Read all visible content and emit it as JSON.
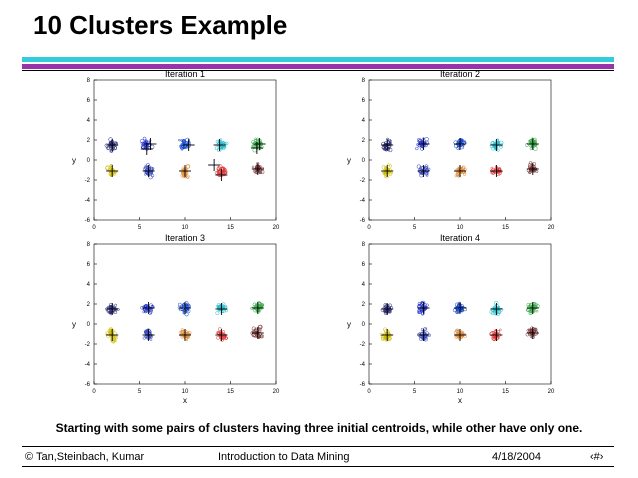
{
  "slide": {
    "title": "10 Clusters Example",
    "caption": "Starting with some pairs of clusters having three initial centroids, while other have only one.",
    "footer": {
      "copyright": "© Tan,Steinbach, Kumar",
      "course": "Introduction to Data Mining",
      "date": "4/18/2004",
      "page": "‹#›"
    },
    "colors": {
      "bar_top": "#33ccdd",
      "bar_bottom": "#9933aa",
      "rule": "#000000"
    }
  },
  "chart_data": [
    {
      "type": "scatter",
      "title": "Iteration 1",
      "xlabel": "",
      "ylabel": "y",
      "xlim": [
        0,
        20
      ],
      "ylim": [
        -6,
        8
      ],
      "xticks": [
        0,
        5,
        10,
        15,
        20
      ],
      "yticks": [
        8,
        6,
        4,
        2,
        0,
        -2,
        -4,
        -6
      ],
      "grid": false,
      "clusters": [
        {
          "color": "#2a2a7a",
          "center": [
            2,
            1.5
          ]
        },
        {
          "color": "#2233cc",
          "center": [
            5.8,
            1.6
          ]
        },
        {
          "color": "#1144cc",
          "center": [
            10,
            1.6
          ]
        },
        {
          "color": "#22bbcc",
          "center": [
            14,
            1.5
          ]
        },
        {
          "color": "#33aa44",
          "center": [
            18,
            1.6
          ]
        },
        {
          "color": "#ccbb00",
          "center": [
            2,
            -1.1
          ]
        },
        {
          "color": "#3344bb",
          "center": [
            6,
            -1.1
          ]
        },
        {
          "color": "#dd8833",
          "center": [
            10,
            -1.1
          ]
        },
        {
          "color": "#dd3333",
          "center": [
            14,
            -1.1
          ]
        },
        {
          "color": "#773333",
          "center": [
            18,
            -0.9
          ]
        }
      ],
      "centroids": [
        [
          2,
          1.5
        ],
        [
          5.8,
          1.1
        ],
        [
          6.2,
          1.6
        ],
        [
          10.4,
          1.5
        ],
        [
          13.8,
          1.5
        ],
        [
          17.9,
          1.2
        ],
        [
          18.2,
          1.6
        ],
        [
          2,
          -1.1
        ],
        [
          6,
          -1.1
        ],
        [
          10,
          -1.1
        ],
        [
          14,
          -1.5
        ],
        [
          13.2,
          -0.5
        ],
        [
          18,
          -0.9
        ]
      ]
    },
    {
      "type": "scatter",
      "title": "Iteration 2",
      "xlabel": "",
      "ylabel": "y",
      "xlim": [
        0,
        20
      ],
      "ylim": [
        -6,
        8
      ],
      "xticks": [
        0,
        5,
        10,
        15,
        20
      ],
      "yticks": [
        8,
        6,
        4,
        2,
        0,
        -2,
        -4,
        -6
      ],
      "grid": false,
      "clusters": [
        {
          "color": "#2a2a7a",
          "center": [
            2,
            1.5
          ]
        },
        {
          "color": "#2233cc",
          "center": [
            5.8,
            1.6
          ]
        },
        {
          "color": "#1144cc",
          "center": [
            10,
            1.6
          ]
        },
        {
          "color": "#22bbcc",
          "center": [
            14,
            1.5
          ]
        },
        {
          "color": "#33aa44",
          "center": [
            18,
            1.6
          ]
        },
        {
          "color": "#ccbb00",
          "center": [
            2,
            -1.1
          ]
        },
        {
          "color": "#3344bb",
          "center": [
            6,
            -1.1
          ]
        },
        {
          "color": "#dd8833",
          "center": [
            10,
            -1.1
          ]
        },
        {
          "color": "#dd3333",
          "center": [
            14,
            -1.1
          ]
        },
        {
          "color": "#773333",
          "center": [
            18,
            -0.9
          ]
        }
      ],
      "centroids": [
        [
          2,
          1.5
        ],
        [
          6,
          1.6
        ],
        [
          10,
          1.6
        ],
        [
          14,
          1.5
        ],
        [
          18,
          1.6
        ],
        [
          2,
          -1.1
        ],
        [
          6,
          -1.1
        ],
        [
          10,
          -1.1
        ],
        [
          14,
          -1.1
        ],
        [
          18,
          -0.9
        ]
      ]
    },
    {
      "type": "scatter",
      "title": "Iteration 3",
      "xlabel": "x",
      "ylabel": "y",
      "xlim": [
        0,
        20
      ],
      "ylim": [
        -6,
        8
      ],
      "xticks": [
        0,
        5,
        10,
        15,
        20
      ],
      "yticks": [
        8,
        6,
        4,
        2,
        0,
        -2,
        -4,
        -6
      ],
      "grid": false,
      "clusters": [
        {
          "color": "#2a2a7a",
          "center": [
            2,
            1.5
          ]
        },
        {
          "color": "#2233cc",
          "center": [
            5.8,
            1.6
          ]
        },
        {
          "color": "#1144cc",
          "center": [
            10,
            1.6
          ]
        },
        {
          "color": "#22bbcc",
          "center": [
            14,
            1.5
          ]
        },
        {
          "color": "#33aa44",
          "center": [
            18,
            1.6
          ]
        },
        {
          "color": "#ccbb00",
          "center": [
            2,
            -1.1
          ]
        },
        {
          "color": "#3344bb",
          "center": [
            6,
            -1.1
          ]
        },
        {
          "color": "#dd8833",
          "center": [
            10,
            -1.1
          ]
        },
        {
          "color": "#dd3333",
          "center": [
            14,
            -1.1
          ]
        },
        {
          "color": "#773333",
          "center": [
            18,
            -0.9
          ]
        }
      ],
      "centroids": [
        [
          2,
          1.5
        ],
        [
          6,
          1.6
        ],
        [
          10,
          1.6
        ],
        [
          14,
          1.5
        ],
        [
          18,
          1.6
        ],
        [
          2,
          -1.1
        ],
        [
          6,
          -1.1
        ],
        [
          10,
          -1.1
        ],
        [
          14,
          -1.1
        ],
        [
          18,
          -0.9
        ]
      ]
    },
    {
      "type": "scatter",
      "title": "Iteration 4",
      "xlabel": "x",
      "ylabel": "y",
      "xlim": [
        0,
        20
      ],
      "ylim": [
        -6,
        8
      ],
      "xticks": [
        0,
        5,
        10,
        15,
        20
      ],
      "yticks": [
        8,
        6,
        4,
        2,
        0,
        -2,
        -4,
        -6
      ],
      "grid": false,
      "clusters": [
        {
          "color": "#2a2a7a",
          "center": [
            2,
            1.5
          ]
        },
        {
          "color": "#2233cc",
          "center": [
            5.8,
            1.6
          ]
        },
        {
          "color": "#1144cc",
          "center": [
            10,
            1.6
          ]
        },
        {
          "color": "#22bbcc",
          "center": [
            14,
            1.5
          ]
        },
        {
          "color": "#33aa44",
          "center": [
            18,
            1.6
          ]
        },
        {
          "color": "#ccbb00",
          "center": [
            2,
            -1.1
          ]
        },
        {
          "color": "#3344bb",
          "center": [
            6,
            -1.1
          ]
        },
        {
          "color": "#dd8833",
          "center": [
            10,
            -1.1
          ]
        },
        {
          "color": "#dd3333",
          "center": [
            14,
            -1.1
          ]
        },
        {
          "color": "#773333",
          "center": [
            18,
            -0.9
          ]
        }
      ],
      "centroids": [
        [
          2,
          1.5
        ],
        [
          6,
          1.6
        ],
        [
          10,
          1.6
        ],
        [
          14,
          1.5
        ],
        [
          18,
          1.6
        ],
        [
          2,
          -1.1
        ],
        [
          6,
          -1.1
        ],
        [
          10,
          -1.1
        ],
        [
          14,
          -1.1
        ],
        [
          18,
          -0.9
        ]
      ]
    }
  ]
}
